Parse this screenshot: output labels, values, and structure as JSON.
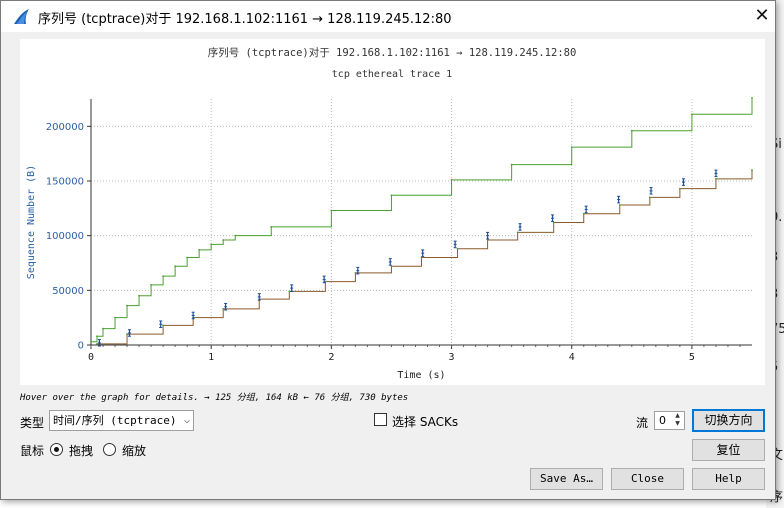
{
  "window": {
    "title": "序列号 (tcptrace)对于 192.168.1.102:1161 → 128.119.245.12:80",
    "close_glyph": "✕"
  },
  "background_fragments": [
    "Si",
    "0.",
    "3",
    "3",
    "75",
    "5",
    "文",
    "序"
  ],
  "chart_data": {
    "type": "line",
    "title": "序列号 (tcptrace)对于 192.168.1.102:1161 → 128.119.245.12:80",
    "subtitle": "tcp ethereal trace 1",
    "xlabel": "Time (s)",
    "ylabel": "Sequence Number (B)",
    "xlim": [
      0,
      5.5
    ],
    "ylim": [
      0,
      225000
    ],
    "xticks": [
      "0",
      "1",
      "2",
      "3",
      "4",
      "5"
    ],
    "yticks": [
      "0",
      "50000",
      "100000",
      "150000",
      "200000"
    ],
    "grid": true,
    "colors": {
      "receive_window": "#4aa02c",
      "acked": "#8b5a2b",
      "segments": "#1e4f9a",
      "axis_label": "#2b5fa3"
    },
    "series": [
      {
        "kind": "receive-window",
        "x": [
          0,
          0.05,
          0.1,
          0.2,
          0.3,
          0.4,
          0.5,
          0.6,
          0.7,
          0.8,
          0.9,
          1.0,
          1.1,
          1.2,
          1.5,
          2.0,
          2.5,
          3.0,
          3.5,
          4.0,
          4.5,
          5.0,
          5.5
        ],
        "values": [
          3000,
          8000,
          15000,
          25000,
          36000,
          45000,
          55000,
          63000,
          72000,
          80000,
          87000,
          92000,
          96000,
          100000,
          108000,
          123000,
          137000,
          151000,
          165000,
          181000,
          196000,
          211000,
          226000
        ]
      },
      {
        "kind": "acked",
        "x": [
          0.05,
          0.3,
          0.6,
          0.85,
          1.1,
          1.4,
          1.65,
          1.95,
          2.2,
          2.5,
          2.75,
          3.05,
          3.3,
          3.55,
          3.85,
          4.1,
          4.4,
          4.65,
          4.9,
          5.2,
          5.5
        ],
        "values": [
          1000,
          10000,
          18000,
          25000,
          33000,
          42000,
          49000,
          58000,
          66000,
          72000,
          80000,
          88000,
          96000,
          103000,
          112000,
          120000,
          128000,
          135000,
          143000,
          152000,
          160000
        ]
      },
      {
        "kind": "segments",
        "x": [
          0.07,
          0.32,
          0.58,
          0.85,
          1.12,
          1.4,
          1.67,
          1.94,
          2.22,
          2.49,
          2.76,
          3.03,
          3.3,
          3.57,
          3.84,
          4.12,
          4.39,
          4.66,
          4.93,
          5.2
        ],
        "values": [
          5000,
          14000,
          22000,
          30000,
          38000,
          47000,
          55000,
          63000,
          71000,
          79000,
          87000,
          95000,
          103000,
          111000,
          119000,
          127000,
          136000,
          144000,
          152000,
          160000
        ]
      }
    ]
  },
  "hover_text": "Hover over the graph for details. → 125 分组, 164 kB ← 76 分组, 730 bytes",
  "controls": {
    "type_label": "类型",
    "type_value": "时间/序列 (tcptrace)",
    "select_sacks_label": "选择 SACKs",
    "stream_label": "流",
    "stream_value": "0",
    "switch_direction": "切换方向",
    "mouse_label": "鼠标",
    "drag_label": "拖拽",
    "zoom_label": "缩放",
    "reset": "复位",
    "save_as": "Save As…",
    "close": "Close",
    "help": "Help"
  }
}
